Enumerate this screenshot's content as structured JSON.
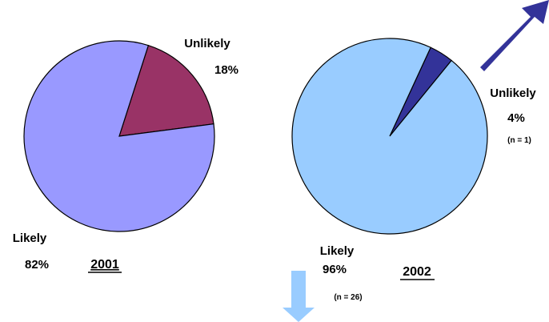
{
  "chart_data": [
    {
      "type": "pie",
      "title": "2001",
      "slices": [
        {
          "label": "Unlikely",
          "value": 18,
          "value_label": "18%",
          "color": "#993366"
        },
        {
          "label": "Likely",
          "value": 82,
          "value_label": "82%",
          "color": "#9999ff"
        }
      ]
    },
    {
      "type": "pie",
      "title": "2002",
      "slices": [
        {
          "label": "Unlikely",
          "value": 4,
          "value_label": "4%",
          "note": "(n = 1)",
          "color": "#333399"
        },
        {
          "label": "Likely",
          "value": 96,
          "value_label": "96%",
          "note": "(n = 26)",
          "color": "#99ccff"
        }
      ]
    }
  ],
  "arrows": {
    "up": {
      "color": "#333399",
      "icon": "arrow-up-right-icon"
    },
    "down": {
      "color": "#99ccff",
      "icon": "arrow-down-icon"
    }
  },
  "outline_color": "#000000"
}
